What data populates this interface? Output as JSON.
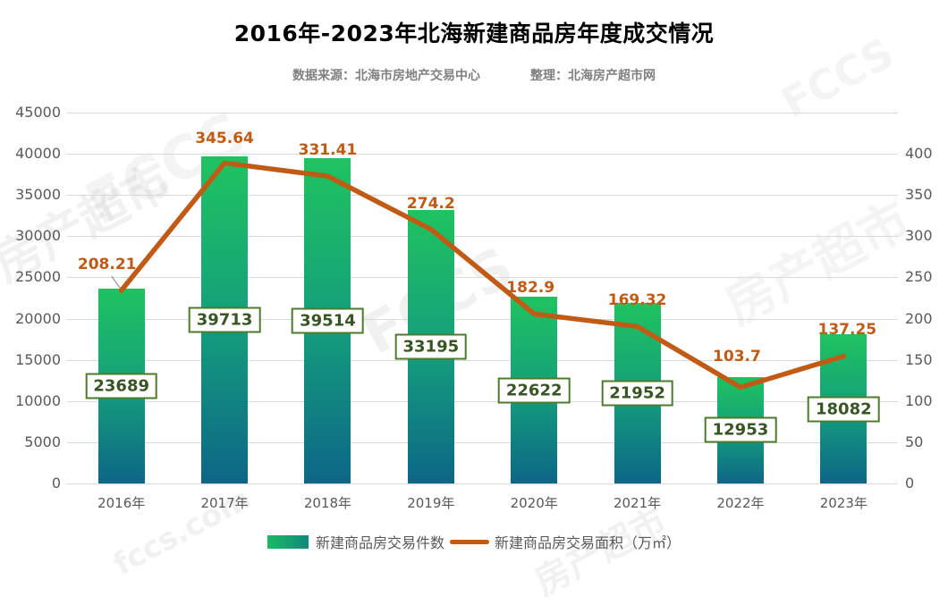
{
  "title": "2016年-2023年北海新建商品房年度成交情况",
  "subtitle": {
    "source": "数据来源：北海市房地产交易中心",
    "editor": "整理：北海房产超市网"
  },
  "chart_data": {
    "type": "combo-bar-line",
    "categories": [
      "2016年",
      "2017年",
      "2018年",
      "2019年",
      "2020年",
      "2021年",
      "2022年",
      "2023年"
    ],
    "series": [
      {
        "name": "新建商品房交易件数",
        "type": "bar",
        "axis": "left",
        "values": [
          23689,
          39713,
          39514,
          33195,
          22622,
          21952,
          12953,
          18082
        ]
      },
      {
        "name": "新建商品房交易面积（万㎡）",
        "type": "line",
        "axis": "right",
        "values": [
          208.21,
          345.64,
          331.41,
          274.2,
          182.9,
          169.32,
          103.7,
          137.25
        ]
      }
    ],
    "left_axis": {
      "min": 0,
      "max": 45000,
      "step": 5000,
      "tick_labels": [
        "0",
        "5000",
        "10000",
        "15000",
        "20000",
        "25000",
        "30000",
        "35000",
        "40000",
        "45000"
      ]
    },
    "right_axis": {
      "min": 0,
      "max": 400,
      "step": 50,
      "tick_labels": [
        "0",
        "50",
        "100",
        "150",
        "200",
        "250",
        "300",
        "350",
        "400"
      ]
    },
    "grid": true,
    "legend_position": "bottom"
  },
  "colors": {
    "bar_top": "#1fc360",
    "bar_mid": "#149e7c",
    "bar_bottom": "#0d6687",
    "line": "#c05a15",
    "line_label": "#c05a15",
    "bar_label_text": "#375623",
    "bar_label_border": "#4e7b2b",
    "axis_text": "#595959",
    "gridline": "#d9d9d9",
    "subtitle_text": "#808080",
    "leader_line": "#a6a6a6"
  },
  "watermarks": {
    "logo": "FCCS",
    "name": "房产超市",
    "site": "fccs.com"
  }
}
